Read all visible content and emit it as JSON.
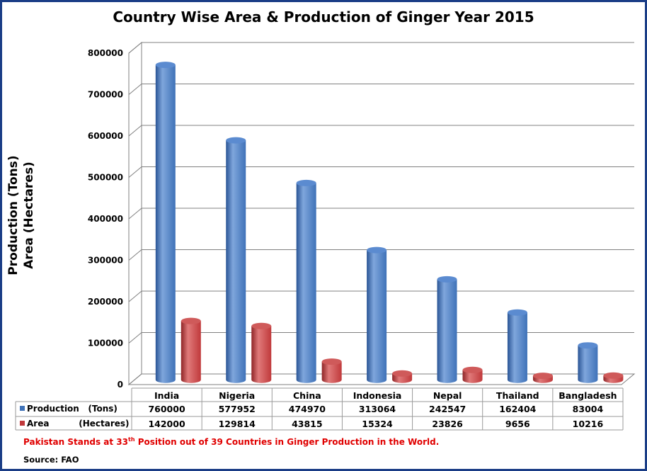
{
  "title": "Country Wise Area & Production of Ginger Year 2015",
  "ylabel_line1": "Production (Tons)",
  "ylabel_line2": "Area (Hectares)",
  "note": {
    "before": "Pakistan Stands at 33",
    "superscript": "th",
    "after": " Position out of 39 Countries in Ginger Production in the World."
  },
  "source": "Source: FAO",
  "colors": {
    "production": "#3f72b8",
    "area": "#c0393b",
    "border": "#1a3d86",
    "note": "#e00000"
  },
  "chart_data": {
    "type": "bar",
    "style": "3d-cylinder",
    "categories": [
      "India",
      "Nigeria",
      "China",
      "Indonesia",
      "Nepal",
      "Thailand",
      "Bangladesh"
    ],
    "series": [
      {
        "name": "Production   (Tons)",
        "values": [
          760000,
          577952,
          474970,
          313064,
          242547,
          162404,
          83004
        ]
      },
      {
        "name": "Area          (Hectares)",
        "values": [
          142000,
          129814,
          43815,
          15324,
          23826,
          9656,
          10216
        ]
      }
    ],
    "ylim": [
      0,
      800000
    ],
    "yticks": [
      "0",
      "100000",
      "200000",
      "300000",
      "400000",
      "500000",
      "600000",
      "700000",
      "800000"
    ],
    "grid": true,
    "legend": "data-table"
  }
}
